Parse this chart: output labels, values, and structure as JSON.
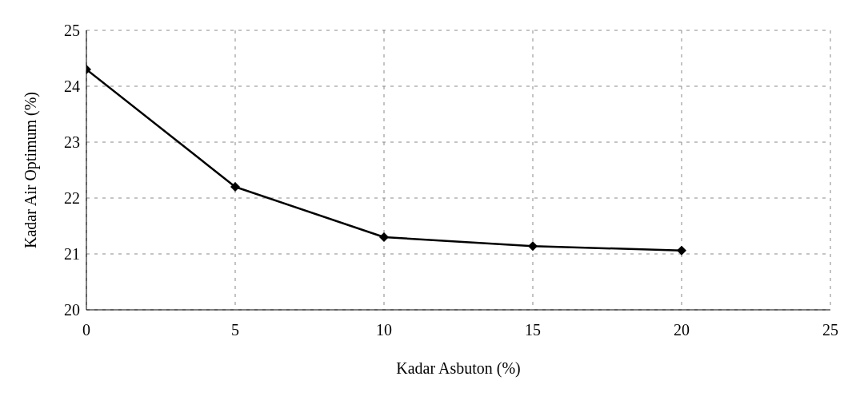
{
  "chart_data": {
    "type": "line",
    "xlabel": "Kadar Asbuton (%)",
    "ylabel": "Kadar Air Optimum (%)",
    "x": [
      0,
      5,
      10,
      15,
      20
    ],
    "series": [
      {
        "color": "#000000",
        "values": [
          24.3,
          22.2,
          21.3,
          21.14,
          21.06
        ]
      }
    ],
    "xlim": [
      0,
      25
    ],
    "xticks": [
      0,
      5,
      10,
      15,
      20,
      25
    ],
    "ylim": [
      20,
      25
    ],
    "yticks": [
      20,
      21,
      22,
      23,
      24,
      25
    ],
    "grid": true,
    "legend": false,
    "marker": "diamond",
    "line_style": "solid"
  }
}
